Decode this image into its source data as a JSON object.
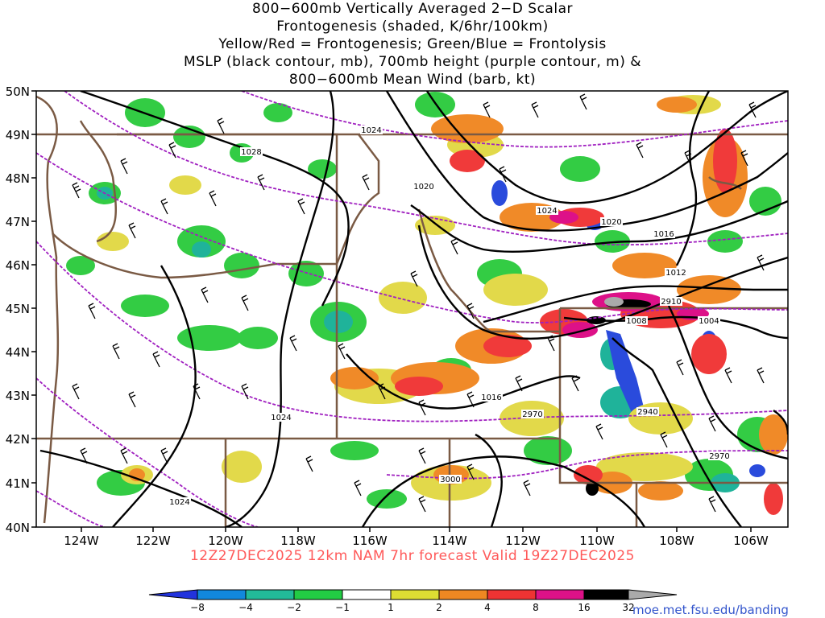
{
  "title": {
    "line1": "800−600mb Vertically Averaged 2−D Scalar",
    "line2": "Frontogenesis (shaded, K/6hr/100km)",
    "line3": "Yellow/Red = Frontogenesis;  Green/Blue = Frontolysis",
    "line4": "MSLP (black contour, mb), 700mb height (purple contour, m) &",
    "line5": "800−600mb Mean Wind (barb, kt)"
  },
  "footer": {
    "valid": "12Z27DEC2025 12km NAM 7hr forecast Valid 19Z27DEC2025",
    "valid_color": "#ff5a5a",
    "credit": "moe.met.fsu.edu/banding",
    "credit_color": "#3355cc"
  },
  "axes": {
    "lat_labels": [
      "50N",
      "49N",
      "48N",
      "47N",
      "46N",
      "45N",
      "44N",
      "43N",
      "42N",
      "41N",
      "40N"
    ],
    "lon_labels": [
      "124W",
      "122W",
      "120W",
      "118W",
      "116W",
      "114W",
      "112W",
      "110W",
      "108W",
      "106W"
    ]
  },
  "contour_labels": {
    "mslp": [
      "1024",
      "1028",
      "1020",
      "1024",
      "1020",
      "1016",
      "1012",
      "1008",
      "1004",
      "1016",
      "1024",
      "1024"
    ],
    "height": [
      "2910",
      "2940",
      "2970",
      "2970",
      "3000"
    ]
  },
  "colorbar": {
    "labels": [
      "−8",
      "−4",
      "−2",
      "−1",
      "1",
      "2",
      "4",
      "8",
      "16",
      "32"
    ],
    "colors": [
      "#2233dd",
      "#1188dd",
      "#22bb99",
      "#22cc44",
      "#ffffff",
      "#dddd33",
      "#ee8822",
      "#ee3333",
      "#dd1188",
      "#000000",
      "#aaaaaa"
    ]
  },
  "colors": {
    "mslp_contour": "#000000",
    "height_contour": "#a020c0",
    "border": "#7a5a44",
    "frontogenesis_weak": "#e2d94a",
    "frontogenesis_mod": "#f08a28",
    "frontogenesis_strong": "#f03a3a",
    "frontolysis_weak": "#33cc44",
    "frontolysis_mod": "#1fb39a",
    "frontolysis_strong": "#2a4bdc"
  }
}
